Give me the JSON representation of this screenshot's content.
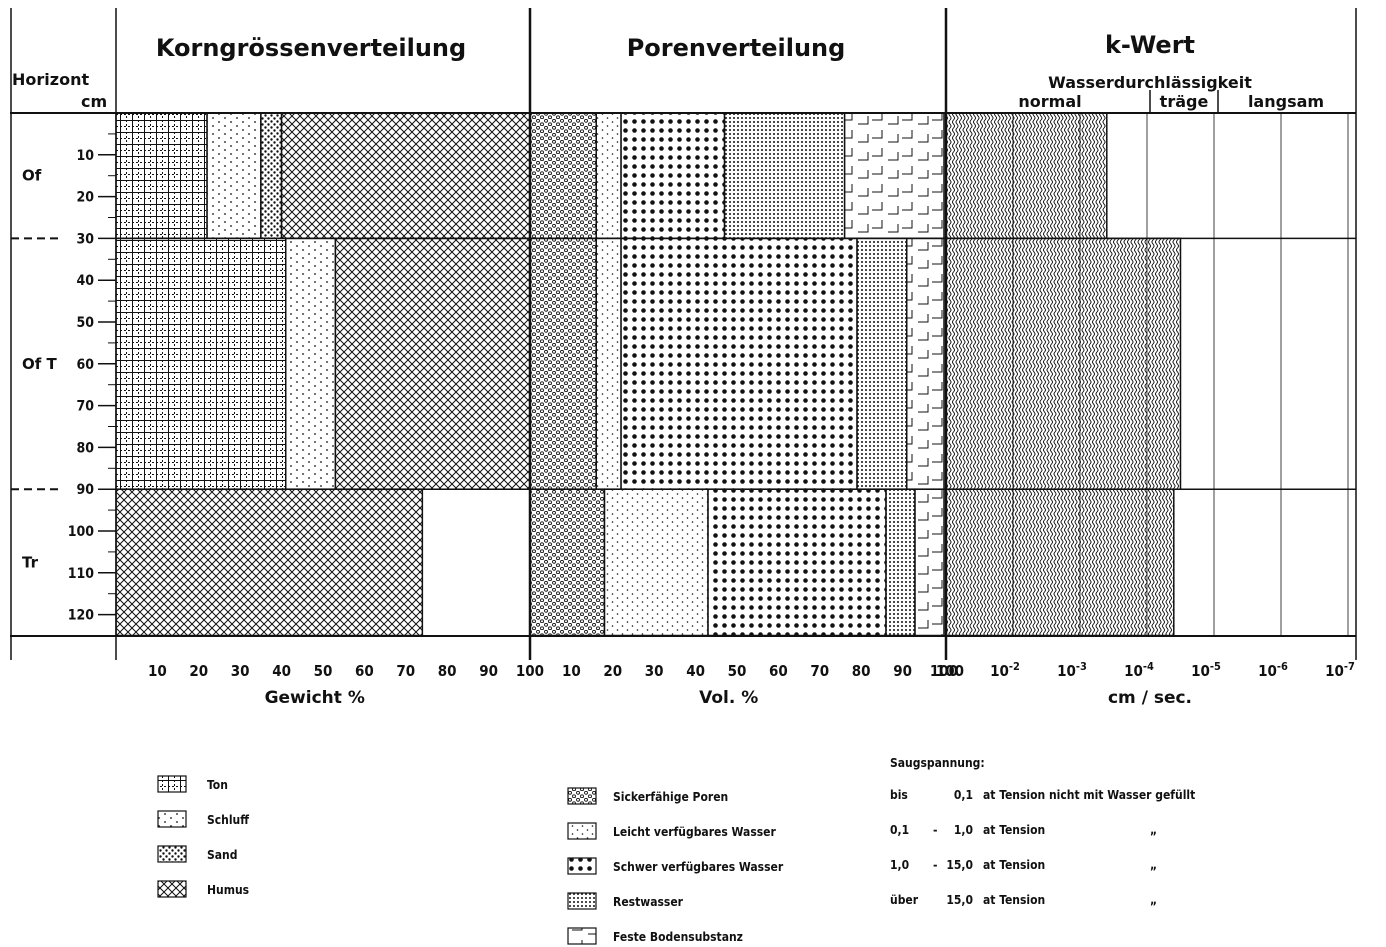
{
  "header": {
    "horizont_label": "Horizont",
    "cm_label": "cm",
    "section1_title": "Korngrössenverteilung",
    "section2_title": "Porenverteilung",
    "section3_title": "k-Wert",
    "section3_subtitle": "Wasserdurchlässigkeit",
    "k_classes": [
      "normal",
      "träge",
      "langsam"
    ]
  },
  "horizons": [
    {
      "name": "Of",
      "from": 0,
      "to": 30
    },
    {
      "name": "Of T",
      "from": 30,
      "to": 90
    },
    {
      "name": "Tr",
      "from": 90,
      "to": 125
    }
  ],
  "depth_ticks": [
    "10",
    "20",
    "30",
    "40",
    "50",
    "60",
    "70",
    "80",
    "90",
    "100",
    "110",
    "120"
  ],
  "axes": {
    "x1": {
      "ticks": [
        "10",
        "20",
        "30",
        "40",
        "50",
        "60",
        "70",
        "80",
        "90",
        "100"
      ],
      "label": "Gewicht %"
    },
    "x2": {
      "ticks": [
        "10",
        "20",
        "30",
        "40",
        "50",
        "60",
        "70",
        "80",
        "90",
        "100"
      ],
      "label": "Vol. %"
    },
    "x3": {
      "ticks": [
        {
          "base": "10",
          "exp": "-2"
        },
        {
          "base": "10",
          "exp": "-3"
        },
        {
          "base": "10",
          "exp": "-4"
        },
        {
          "base": "10",
          "exp": "-5"
        },
        {
          "base": "10",
          "exp": "-6"
        },
        {
          "base": "10",
          "exp": "-7"
        }
      ],
      "label": "cm / sec."
    }
  },
  "chart_data": [
    {
      "type": "bar",
      "title": "Korngrössenverteilung",
      "xlabel": "Gewicht %",
      "ylabel": "Horizont cm",
      "xlim": [
        0,
        100
      ],
      "categories": [
        "Of",
        "Of T",
        "Tr"
      ],
      "series": [
        {
          "name": "Ton",
          "values": [
            22,
            41,
            0
          ]
        },
        {
          "name": "Schluff",
          "values": [
            13,
            12,
            0
          ]
        },
        {
          "name": "Sand",
          "values": [
            5,
            0,
            0
          ]
        },
        {
          "name": "Humus",
          "values": [
            60,
            47,
            74
          ]
        }
      ]
    },
    {
      "type": "bar",
      "title": "Porenverteilung",
      "xlabel": "Vol. %",
      "xlim": [
        0,
        100
      ],
      "categories": [
        "Of",
        "Of T",
        "Tr"
      ],
      "series": [
        {
          "name": "Sickerfähige Poren",
          "values": [
            16,
            16,
            18
          ]
        },
        {
          "name": "Leicht verfügbares Wasser",
          "values": [
            6,
            6,
            25
          ]
        },
        {
          "name": "Schwer verfügbares Wasser",
          "values": [
            25,
            57,
            43
          ]
        },
        {
          "name": "Restwasser",
          "values": [
            29,
            12,
            7
          ]
        },
        {
          "name": "Feste Bodensubstanz",
          "values": [
            24,
            9,
            7
          ]
        }
      ]
    },
    {
      "type": "bar",
      "title": "k-Wert",
      "xlabel": "cm / sec.",
      "xscale": "log",
      "categories": [
        "Of",
        "Of T",
        "Tr"
      ],
      "values_exponent": [
        -3.4,
        -4.5,
        -4.4
      ]
    }
  ],
  "legend_left": [
    {
      "label": "Ton",
      "pattern": "ton"
    },
    {
      "label": "Schluff",
      "pattern": "schluff"
    },
    {
      "label": "Sand",
      "pattern": "sand"
    },
    {
      "label": "Humus",
      "pattern": "humus"
    }
  ],
  "legend_right_title": "Saugspannung:",
  "legend_right": [
    {
      "label": "Sickerfähige Poren",
      "pattern": "sicker",
      "p": "bis",
      "a": "",
      "b": "0,1",
      "rest": "at  Tension nicht mit Wasser gefüllt"
    },
    {
      "label": "Leicht verfügbares Wasser",
      "pattern": "leicht",
      "p": "0,1",
      "a": "-",
      "b": "1,0",
      "rest": "at  Tension"
    },
    {
      "label": "Schwer verfügbares Wasser",
      "pattern": "schwer",
      "p": "1,0",
      "a": "-",
      "b": "15,0",
      "rest": "at  Tension"
    },
    {
      "label": "Restwasser",
      "pattern": "rest",
      "p": "über",
      "a": "",
      "b": "15,0",
      "rest": "at  Tension"
    },
    {
      "label": "Feste Bodensubstanz",
      "pattern": "fest"
    }
  ],
  "ditto_mark": "„"
}
